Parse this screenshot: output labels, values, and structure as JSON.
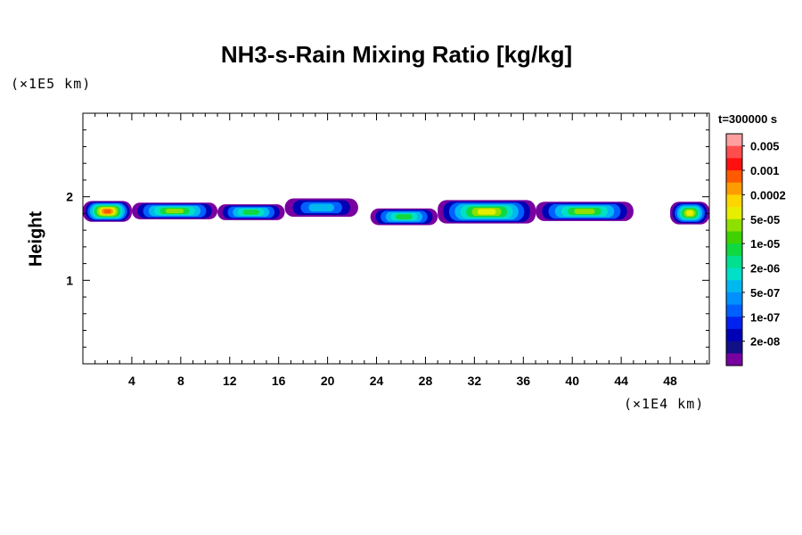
{
  "chart_data": {
    "type": "heatmap",
    "title": "NH3-s-Rain Mixing Ratio [kg/kg]",
    "xlabel": "",
    "ylabel": "Height",
    "x_scale_label": "(×1E4 km)",
    "y_scale_label": "(×1E5 km)",
    "time_label": "t=300000 s",
    "xlim": [
      0,
      51.2
    ],
    "ylim": [
      0,
      3
    ],
    "x_ticks": [
      4,
      8,
      12,
      16,
      20,
      24,
      28,
      32,
      36,
      40,
      44,
      48
    ],
    "x_minor_step": 1,
    "y_ticks": [
      1,
      2
    ],
    "y_minor_step": 0.2,
    "colorbar": {
      "labels": [
        "0.005",
        "0.001",
        "0.0002",
        "5e-05",
        "1e-05",
        "2e-06",
        "5e-07",
        "1e-07",
        "2e-08"
      ],
      "colors_top_to_bottom": [
        "#ff9f9f",
        "#ff4d4d",
        "#ff1010",
        "#ff5a00",
        "#ff9c00",
        "#ffd500",
        "#e6ee00",
        "#8fe000",
        "#3fd200",
        "#10d840",
        "#00e090",
        "#00e0c8",
        "#00b8f0",
        "#0090ff",
        "#0060ff",
        "#0022ee",
        "#0000b4",
        "#101088",
        "#7800a0"
      ]
    },
    "bands": [
      {
        "x_start": 0.0,
        "x_end": 4.0,
        "y_bottom": 1.7,
        "y_top": 1.95,
        "max_level": "0.0002"
      },
      {
        "x_start": 4.0,
        "x_end": 11.0,
        "y_bottom": 1.73,
        "y_top": 1.93,
        "max_level": "1e-05"
      },
      {
        "x_start": 11.0,
        "x_end": 16.5,
        "y_bottom": 1.72,
        "y_top": 1.91,
        "max_level": "2e-06"
      },
      {
        "x_start": 16.5,
        "x_end": 22.5,
        "y_bottom": 1.76,
        "y_top": 1.98,
        "max_level": "5e-07"
      },
      {
        "x_start": 23.5,
        "x_end": 29.0,
        "y_bottom": 1.66,
        "y_top": 1.86,
        "max_level": "2e-06"
      },
      {
        "x_start": 29.0,
        "x_end": 37.0,
        "y_bottom": 1.68,
        "y_top": 1.96,
        "max_level": "5e-05"
      },
      {
        "x_start": 37.0,
        "x_end": 45.0,
        "y_bottom": 1.71,
        "y_top": 1.94,
        "max_level": "1e-05"
      },
      {
        "x_start": 48.0,
        "x_end": 51.2,
        "y_bottom": 1.67,
        "y_top": 1.94,
        "max_level": "5e-05"
      }
    ]
  }
}
